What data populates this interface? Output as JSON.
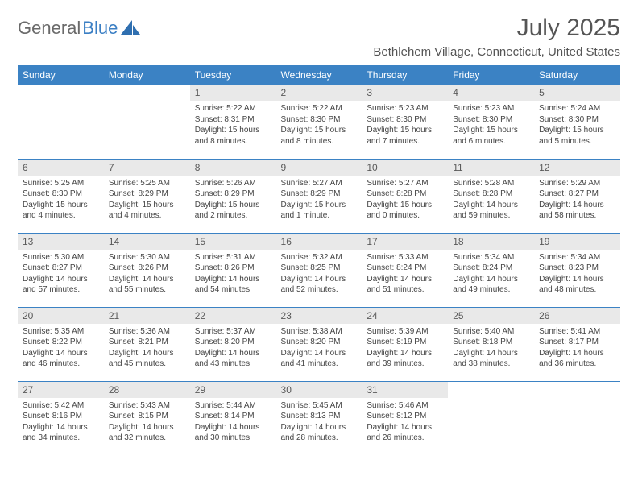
{
  "brand": {
    "part1": "General",
    "part2": "Blue"
  },
  "title": "July 2025",
  "location": "Bethlehem Village, Connecticut, United States",
  "colors": {
    "header_bg": "#3b82c4",
    "header_text": "#ffffff",
    "daynum_bg": "#e9e9e9",
    "body_text": "#444444",
    "rule": "#3b82c4"
  },
  "dayNames": [
    "Sunday",
    "Monday",
    "Tuesday",
    "Wednesday",
    "Thursday",
    "Friday",
    "Saturday"
  ],
  "weeks": [
    [
      {
        "n": "",
        "lines": []
      },
      {
        "n": "",
        "lines": []
      },
      {
        "n": "1",
        "lines": [
          "Sunrise: 5:22 AM",
          "Sunset: 8:31 PM",
          "Daylight: 15 hours and 8 minutes."
        ]
      },
      {
        "n": "2",
        "lines": [
          "Sunrise: 5:22 AM",
          "Sunset: 8:30 PM",
          "Daylight: 15 hours and 8 minutes."
        ]
      },
      {
        "n": "3",
        "lines": [
          "Sunrise: 5:23 AM",
          "Sunset: 8:30 PM",
          "Daylight: 15 hours and 7 minutes."
        ]
      },
      {
        "n": "4",
        "lines": [
          "Sunrise: 5:23 AM",
          "Sunset: 8:30 PM",
          "Daylight: 15 hours and 6 minutes."
        ]
      },
      {
        "n": "5",
        "lines": [
          "Sunrise: 5:24 AM",
          "Sunset: 8:30 PM",
          "Daylight: 15 hours and 5 minutes."
        ]
      }
    ],
    [
      {
        "n": "6",
        "lines": [
          "Sunrise: 5:25 AM",
          "Sunset: 8:30 PM",
          "Daylight: 15 hours and 4 minutes."
        ]
      },
      {
        "n": "7",
        "lines": [
          "Sunrise: 5:25 AM",
          "Sunset: 8:29 PM",
          "Daylight: 15 hours and 4 minutes."
        ]
      },
      {
        "n": "8",
        "lines": [
          "Sunrise: 5:26 AM",
          "Sunset: 8:29 PM",
          "Daylight: 15 hours and 2 minutes."
        ]
      },
      {
        "n": "9",
        "lines": [
          "Sunrise: 5:27 AM",
          "Sunset: 8:29 PM",
          "Daylight: 15 hours and 1 minute."
        ]
      },
      {
        "n": "10",
        "lines": [
          "Sunrise: 5:27 AM",
          "Sunset: 8:28 PM",
          "Daylight: 15 hours and 0 minutes."
        ]
      },
      {
        "n": "11",
        "lines": [
          "Sunrise: 5:28 AM",
          "Sunset: 8:28 PM",
          "Daylight: 14 hours and 59 minutes."
        ]
      },
      {
        "n": "12",
        "lines": [
          "Sunrise: 5:29 AM",
          "Sunset: 8:27 PM",
          "Daylight: 14 hours and 58 minutes."
        ]
      }
    ],
    [
      {
        "n": "13",
        "lines": [
          "Sunrise: 5:30 AM",
          "Sunset: 8:27 PM",
          "Daylight: 14 hours and 57 minutes."
        ]
      },
      {
        "n": "14",
        "lines": [
          "Sunrise: 5:30 AM",
          "Sunset: 8:26 PM",
          "Daylight: 14 hours and 55 minutes."
        ]
      },
      {
        "n": "15",
        "lines": [
          "Sunrise: 5:31 AM",
          "Sunset: 8:26 PM",
          "Daylight: 14 hours and 54 minutes."
        ]
      },
      {
        "n": "16",
        "lines": [
          "Sunrise: 5:32 AM",
          "Sunset: 8:25 PM",
          "Daylight: 14 hours and 52 minutes."
        ]
      },
      {
        "n": "17",
        "lines": [
          "Sunrise: 5:33 AM",
          "Sunset: 8:24 PM",
          "Daylight: 14 hours and 51 minutes."
        ]
      },
      {
        "n": "18",
        "lines": [
          "Sunrise: 5:34 AM",
          "Sunset: 8:24 PM",
          "Daylight: 14 hours and 49 minutes."
        ]
      },
      {
        "n": "19",
        "lines": [
          "Sunrise: 5:34 AM",
          "Sunset: 8:23 PM",
          "Daylight: 14 hours and 48 minutes."
        ]
      }
    ],
    [
      {
        "n": "20",
        "lines": [
          "Sunrise: 5:35 AM",
          "Sunset: 8:22 PM",
          "Daylight: 14 hours and 46 minutes."
        ]
      },
      {
        "n": "21",
        "lines": [
          "Sunrise: 5:36 AM",
          "Sunset: 8:21 PM",
          "Daylight: 14 hours and 45 minutes."
        ]
      },
      {
        "n": "22",
        "lines": [
          "Sunrise: 5:37 AM",
          "Sunset: 8:20 PM",
          "Daylight: 14 hours and 43 minutes."
        ]
      },
      {
        "n": "23",
        "lines": [
          "Sunrise: 5:38 AM",
          "Sunset: 8:20 PM",
          "Daylight: 14 hours and 41 minutes."
        ]
      },
      {
        "n": "24",
        "lines": [
          "Sunrise: 5:39 AM",
          "Sunset: 8:19 PM",
          "Daylight: 14 hours and 39 minutes."
        ]
      },
      {
        "n": "25",
        "lines": [
          "Sunrise: 5:40 AM",
          "Sunset: 8:18 PM",
          "Daylight: 14 hours and 38 minutes."
        ]
      },
      {
        "n": "26",
        "lines": [
          "Sunrise: 5:41 AM",
          "Sunset: 8:17 PM",
          "Daylight: 14 hours and 36 minutes."
        ]
      }
    ],
    [
      {
        "n": "27",
        "lines": [
          "Sunrise: 5:42 AM",
          "Sunset: 8:16 PM",
          "Daylight: 14 hours and 34 minutes."
        ]
      },
      {
        "n": "28",
        "lines": [
          "Sunrise: 5:43 AM",
          "Sunset: 8:15 PM",
          "Daylight: 14 hours and 32 minutes."
        ]
      },
      {
        "n": "29",
        "lines": [
          "Sunrise: 5:44 AM",
          "Sunset: 8:14 PM",
          "Daylight: 14 hours and 30 minutes."
        ]
      },
      {
        "n": "30",
        "lines": [
          "Sunrise: 5:45 AM",
          "Sunset: 8:13 PM",
          "Daylight: 14 hours and 28 minutes."
        ]
      },
      {
        "n": "31",
        "lines": [
          "Sunrise: 5:46 AM",
          "Sunset: 8:12 PM",
          "Daylight: 14 hours and 26 minutes."
        ]
      },
      {
        "n": "",
        "lines": []
      },
      {
        "n": "",
        "lines": []
      }
    ]
  ]
}
